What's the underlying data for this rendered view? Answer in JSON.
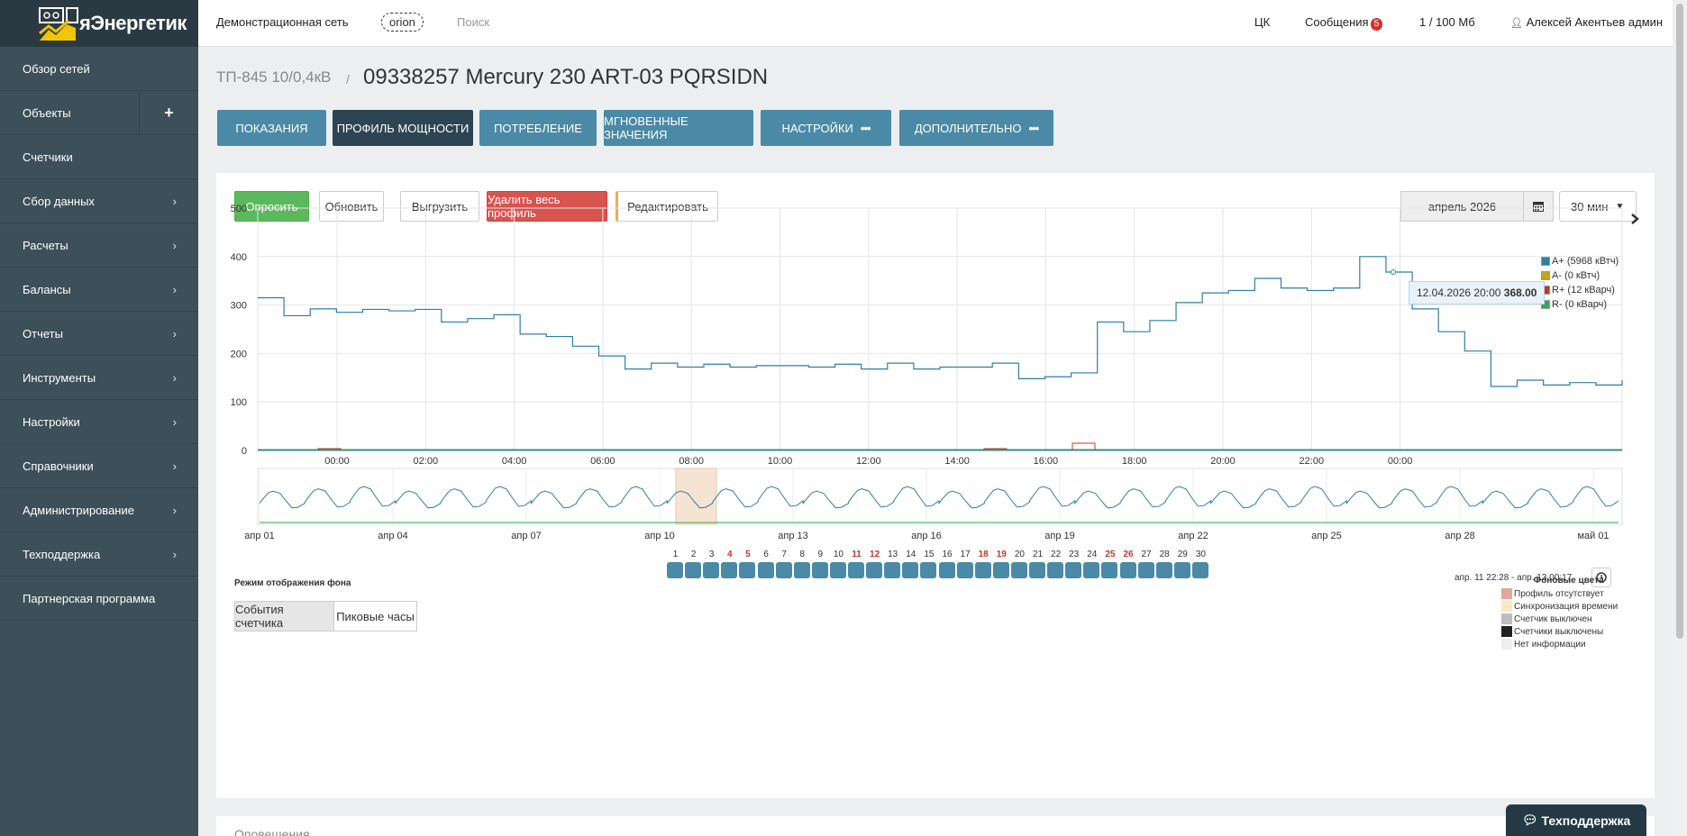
{
  "app": {
    "logo_text": "яЭнергетик"
  },
  "sidebar": {
    "items": [
      {
        "label": "Обзор сетей",
        "has_submenu": false
      },
      {
        "label": "Объекты",
        "has_add": true
      },
      {
        "label": "Счетчики",
        "has_submenu": false
      },
      {
        "label": "Сбор данных",
        "has_submenu": true
      },
      {
        "label": "Расчеты",
        "has_submenu": true
      },
      {
        "label": "Балансы",
        "has_submenu": true
      },
      {
        "label": "Отчеты",
        "has_submenu": true
      },
      {
        "label": "Инструменты",
        "has_submenu": true
      },
      {
        "label": "Настройки",
        "has_submenu": true
      },
      {
        "label": "Справочники",
        "has_submenu": true
      },
      {
        "label": "Администрирование",
        "has_submenu": true
      },
      {
        "label": "Техподдержка",
        "has_submenu": true
      },
      {
        "label": "Партнерская программа",
        "has_submenu": false
      }
    ]
  },
  "topbar": {
    "network": "Демонстрационная сеть",
    "server": "orion",
    "search_placeholder": "Поиск",
    "ck": "ЦК",
    "messages_label": "Сообщения",
    "messages_count": "5",
    "storage": "1 / 100 Мб",
    "user": "Алексей Акентьев админ"
  },
  "page": {
    "breadcrumb": "ТП-845 10/0,4кВ",
    "separator": "/",
    "title": "09338257 Mercury 230 ART-03 PQRSIDN"
  },
  "tabs": [
    {
      "label": "Показания"
    },
    {
      "label": "Профиль мощности",
      "active": true
    },
    {
      "label": "Потребление"
    },
    {
      "label": "Мгновенные значения"
    },
    {
      "label": "Настройки",
      "menu": true
    },
    {
      "label": "Дополнительно",
      "menu": true
    }
  ],
  "toolbar": {
    "poll": "Опросить",
    "refresh": "Обновить",
    "export": "Выгрузить",
    "delete_all": "Удалить весь профиль",
    "edit": "Редактировать",
    "date": "апрель 2026",
    "interval": "30 мин"
  },
  "chart_data": {
    "type": "line",
    "y_ticks": [
      "500",
      "400",
      "300",
      "200",
      "100",
      "0"
    ],
    "ylim": [
      0,
      500
    ],
    "x_ticks": [
      "00:00",
      "02:00",
      "04:00",
      "06:00",
      "08:00",
      "10:00",
      "12:00",
      "14:00",
      "16:00",
      "18:00",
      "20:00",
      "22:00",
      "00:00"
    ],
    "series": [
      {
        "name": "A+ (5968 кВтч)",
        "color": "#2f7ea6",
        "values": [
          315,
          278,
          292,
          285,
          291,
          288,
          291,
          265,
          272,
          280,
          240,
          235,
          215,
          195,
          168,
          180,
          172,
          178,
          172,
          175,
          175,
          172,
          178,
          168,
          180,
          168,
          172,
          172,
          180,
          148,
          152,
          160,
          265,
          245,
          268,
          305,
          325,
          330,
          355,
          335,
          330,
          335,
          400,
          368,
          292,
          245,
          205,
          132,
          145,
          135,
          140,
          135,
          145
        ]
      },
      {
        "name": "A- (0 кВтч)",
        "color": "#c8a21e"
      },
      {
        "name": "R+ (12 кВарч)",
        "color": "#c0392b"
      },
      {
        "name": "R- (0 кВарч)",
        "color": "#3aa35a"
      }
    ],
    "tooltip": {
      "time": "12.04.2026 20:00",
      "value": "368.00"
    },
    "navigator": {
      "x_ticks": [
        "апр 01",
        "апр 04",
        "апр 07",
        "апр 10",
        "апр 13",
        "апр 16",
        "апр 19",
        "апр 22",
        "апр 25",
        "апр 28",
        "май 01"
      ],
      "range_label": "апр. 11 22:28 - апр. 13 00:17"
    }
  },
  "days": {
    "numbers": [
      "1",
      "2",
      "3",
      "4",
      "5",
      "6",
      "7",
      "8",
      "9",
      "10",
      "11",
      "12",
      "13",
      "14",
      "15",
      "16",
      "17",
      "18",
      "19",
      "20",
      "21",
      "22",
      "23",
      "24",
      "25",
      "26",
      "27",
      "28",
      "29",
      "30"
    ],
    "weekends": [
      "4",
      "5",
      "11",
      "12",
      "18",
      "19",
      "25",
      "26"
    ]
  },
  "background_mode": {
    "label": "Режим отображения фона",
    "options": [
      "События счетчика",
      "Пиковые часы"
    ]
  },
  "background_legend": {
    "title": "Фоновые цвета",
    "items": [
      {
        "label": "Профиль отсутствует",
        "color": "#e8a39a"
      },
      {
        "label": "Синхронизация времени",
        "color": "#fbe7c1"
      },
      {
        "label": "Счетчик выключен",
        "color": "#bdbdbd"
      },
      {
        "label": "Счетчики выключены",
        "color": "#222222"
      },
      {
        "label": "Нет информации",
        "color": "#eeeeee"
      }
    ]
  },
  "next_panel": {
    "title": "Оповещения"
  },
  "support_button": "Техподдержка"
}
